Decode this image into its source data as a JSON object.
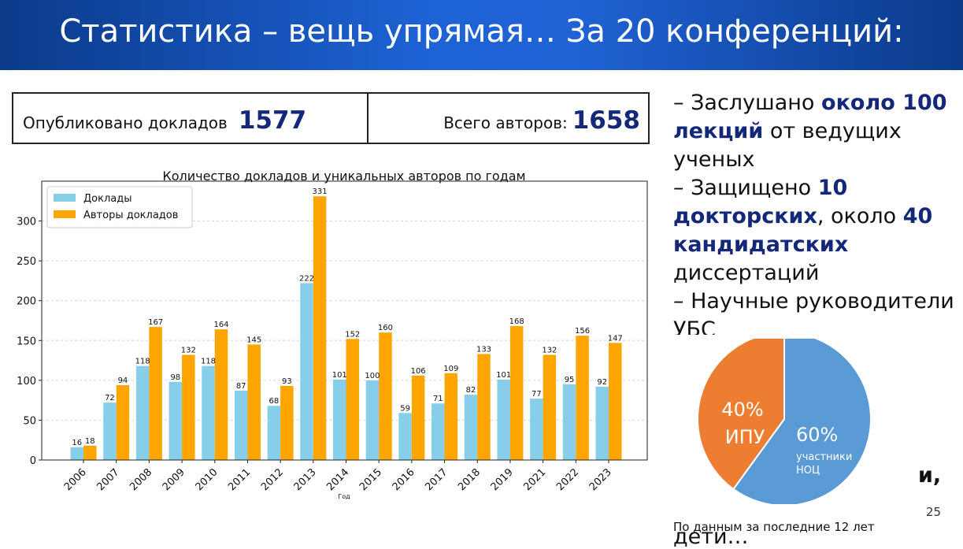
{
  "header": {
    "title": "Статистика – вещь упрямая… За 20 конференций:"
  },
  "stats": {
    "published_label": "Опубликовано докладов",
    "published_value": "1577",
    "authors_label": "Всего авторов:",
    "authors_value": "1658"
  },
  "chart_data": {
    "type": "bar",
    "title": "Количество докладов и уникальных авторов по годам",
    "xlabel": "Год",
    "ylabel": "",
    "ylim": [
      0,
      350
    ],
    "yticks": [
      0,
      50,
      100,
      150,
      200,
      250,
      300
    ],
    "grid": true,
    "legend_position": "top-left",
    "categories": [
      "2006",
      "2007",
      "2008",
      "2009",
      "2010",
      "2011",
      "2012",
      "2013",
      "2014",
      "2015",
      "2016",
      "2017",
      "2018",
      "2019",
      "2021",
      "2022",
      "2023"
    ],
    "series": [
      {
        "name": "Доклады",
        "color": "#87ceeb",
        "values": [
          16,
          72,
          118,
          98,
          118,
          87,
          68,
          222,
          101,
          100,
          59,
          71,
          82,
          101,
          77,
          95,
          92
        ]
      },
      {
        "name": "Авторы докладов",
        "color": "#ffa500",
        "values": [
          18,
          94,
          167,
          132,
          164,
          145,
          93,
          331,
          152,
          160,
          106,
          109,
          133,
          168,
          132,
          156,
          147
        ]
      }
    ]
  },
  "bullets": {
    "b1_pre": "– Заслушано ",
    "b1_bold": "около 100 лекций",
    "b1_post": " от ведущих ученых",
    "b2_pre": "– Защищено ",
    "b2_bold1": "10 докторских",
    "b2_mid": ", около ",
    "b2_bold2": "40 кандидатских",
    "b2_post": " диссертаций",
    "b3": "– Научные руководители УБС"
  },
  "pie": {
    "slices": [
      {
        "percent_label": "60%",
        "sub_label": "участники НОЦ",
        "value": 60,
        "color": "#5b9bd5"
      },
      {
        "percent_label": "40%",
        "sub_label": "ИПУ",
        "value": 40,
        "color": "#ed7d31"
      }
    ]
  },
  "partial_text_right": "и,",
  "partial_text_bottom": "дети…",
  "footnote": "По данным за последние 12 лет",
  "page_number": "25"
}
